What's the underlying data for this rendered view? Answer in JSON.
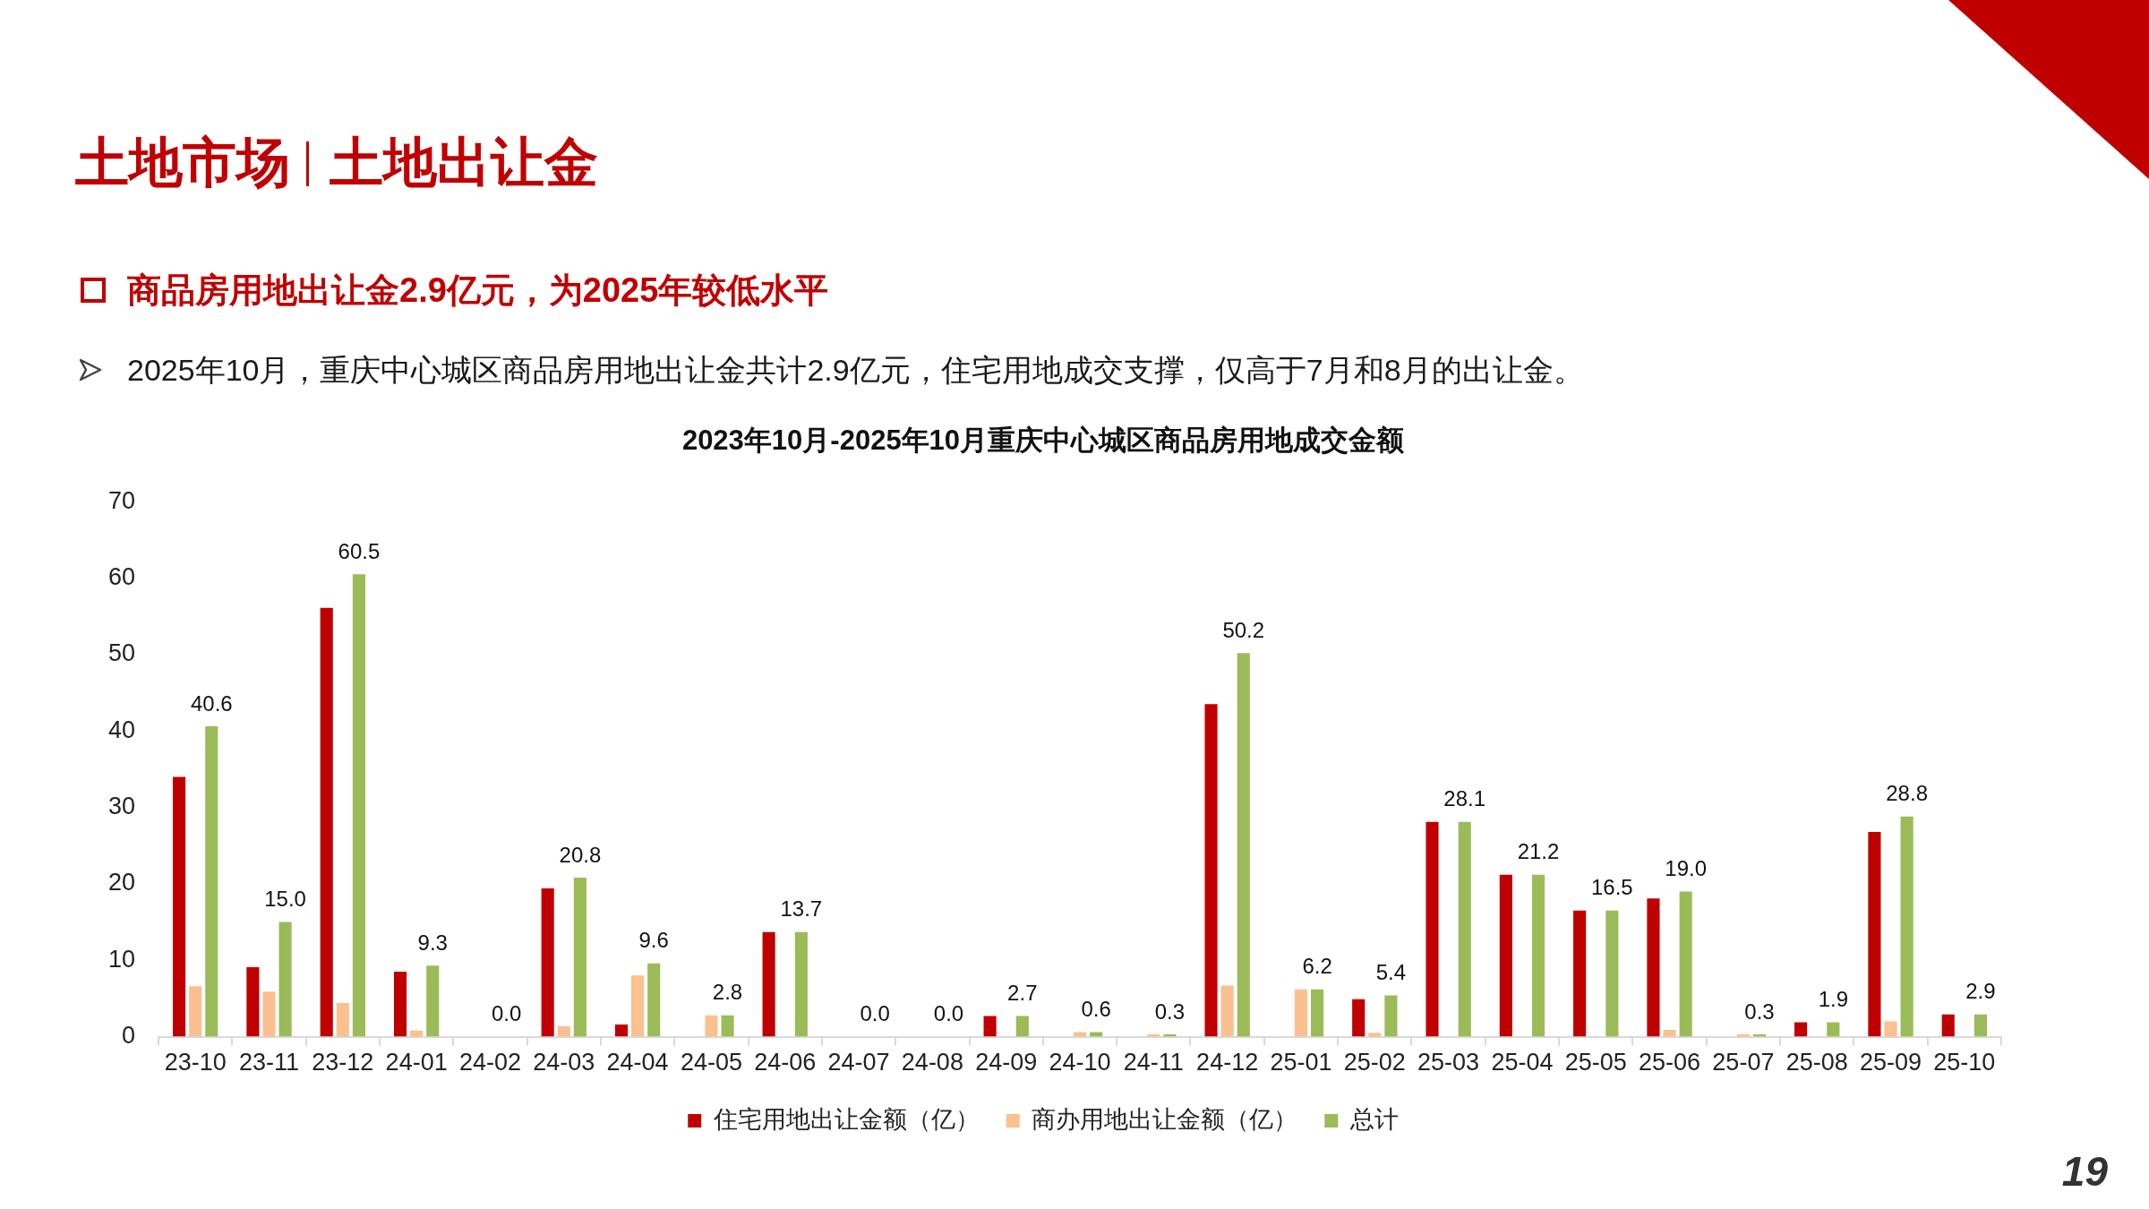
{
  "chart_data": {
    "type": "bar",
    "title": "2023年10月-2025年10月重庆中心城区商品房用地成交金额",
    "categories": [
      "23-10",
      "23-11",
      "23-12",
      "24-01",
      "24-02",
      "24-03",
      "24-04",
      "24-05",
      "24-06",
      "24-07",
      "24-08",
      "24-09",
      "24-10",
      "24-11",
      "24-12",
      "25-01",
      "25-02",
      "25-03",
      "25-04",
      "25-05",
      "25-06",
      "25-07",
      "25-08",
      "25-09",
      "25-10"
    ],
    "series": [
      {
        "name": "住宅用地出让金额（亿）",
        "color": "#c00000",
        "values": [
          34.0,
          9.1,
          56.1,
          8.5,
          0,
          19.4,
          1.6,
          0,
          13.7,
          0,
          0,
          2.7,
          0,
          0,
          43.5,
          0,
          4.9,
          28.1,
          21.2,
          16.5,
          18.1,
          0,
          1.9,
          26.8,
          2.9
        ]
      },
      {
        "name": "商办用地出让金额（亿）",
        "color": "#fac090",
        "values": [
          6.6,
          5.9,
          4.4,
          0.8,
          0,
          1.4,
          8.0,
          2.8,
          0,
          0,
          0,
          0,
          0.6,
          0.3,
          6.7,
          6.2,
          0.5,
          0,
          0,
          0,
          0.9,
          0.3,
          0,
          2.0,
          0
        ]
      },
      {
        "name": "总计",
        "color": "#9bbb59",
        "values": [
          40.6,
          15.0,
          60.5,
          9.3,
          0.0,
          20.8,
          9.6,
          2.8,
          13.7,
          0.0,
          0.0,
          2.7,
          0.6,
          0.3,
          50.2,
          6.2,
          5.4,
          28.1,
          21.2,
          16.5,
          19.0,
          0.3,
          1.9,
          28.8,
          2.9
        ],
        "value_labels": [
          "40.6",
          "15.0",
          "60.5",
          "9.3",
          "0.0",
          "20.8",
          "9.6",
          "2.8",
          "13.7",
          "0.0",
          "0.0",
          "2.7",
          "0.6",
          "0.3",
          "50.2",
          "6.2",
          "5.4",
          "28.1",
          "21.2",
          "16.5",
          "19.0",
          "0.3",
          "1.9",
          "28.8",
          "2.9"
        ]
      }
    ],
    "ylim": [
      0,
      70
    ],
    "yticks": [
      0,
      10,
      20,
      30,
      40,
      50,
      60,
      70
    ],
    "legend": "bottom",
    "annotations": [
      "土地市场",
      "土地出让金",
      "商品房用地出让金2.9亿元，为2025年较低水平",
      "2025年10月，重庆中心城区商品房用地出让金共计2.9亿元，住宅用地成交支撑，仅高于7月和8月的出让金。",
      "19"
    ]
  }
}
